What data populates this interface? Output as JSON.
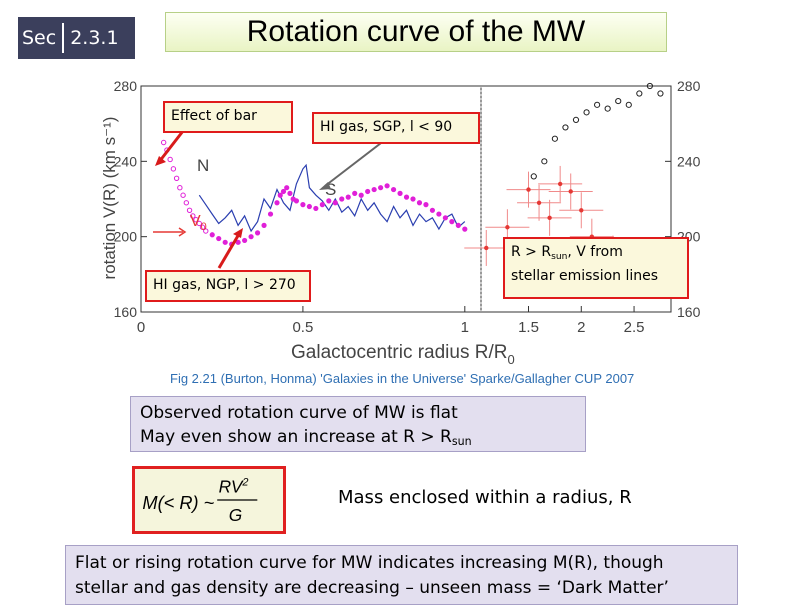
{
  "section": {
    "prefix": "Sec",
    "number": "2.3.1"
  },
  "title": "Rotation curve of the MW",
  "callouts": {
    "bar": "Effect of bar",
    "sgp": "HI gas, SGP, l < 90",
    "ngp": "HI gas, NGP, l > 270",
    "stellar_line1_main": "R > R",
    "stellar_line1_sub": "sun",
    "stellar_line1_tail": ", V from",
    "stellar_line2": "stellar emission lines"
  },
  "figure": {
    "caption": "Fig 2.21 (Burton, Honma) 'Galaxies in the Universe' Sparke/Gallagher CUP 2007",
    "x_label_main": "Galactocentric  radius  R/R",
    "x_label_sub": "0",
    "y_label": "rotation  V(R)  (km s⁻¹)",
    "annot_N": "N",
    "annot_S": "S",
    "annot_V": "V",
    "annot_V_sub": "0",
    "left_x_ticks": [
      "0",
      "0.5",
      "1"
    ],
    "right_x_ticks": [
      "1.5",
      "2",
      "2.5"
    ],
    "y_ticks": [
      "160",
      "200",
      "240",
      "280"
    ]
  },
  "chart_data": {
    "type": "line",
    "title": "",
    "xlabel": "Galactocentric radius R/R0",
    "ylabel": "rotation V(R) (km s^-1)",
    "ylim": [
      160,
      280
    ],
    "panels": [
      {
        "xlim": [
          0,
          1.05
        ],
        "x_ticks": [
          0,
          0.5,
          1
        ]
      },
      {
        "xlim": [
          1.05,
          2.85
        ],
        "x_ticks": [
          1.5,
          2,
          2.5
        ]
      }
    ],
    "series": [
      {
        "name": "HI gas SGP (blue line)",
        "color": "#2b3fb0",
        "x": [
          0.18,
          0.2,
          0.22,
          0.24,
          0.26,
          0.28,
          0.3,
          0.32,
          0.34,
          0.36,
          0.38,
          0.4,
          0.42,
          0.44,
          0.46,
          0.48,
          0.5,
          0.51,
          0.52,
          0.54,
          0.56,
          0.58,
          0.6,
          0.62,
          0.64,
          0.66,
          0.68,
          0.7,
          0.72,
          0.74,
          0.76,
          0.78,
          0.8,
          0.82,
          0.84,
          0.86,
          0.88,
          0.9,
          0.92,
          0.94,
          0.96,
          0.98,
          1.0
        ],
        "y": [
          222,
          217,
          212,
          207,
          210,
          214,
          206,
          211,
          203,
          208,
          220,
          215,
          225,
          218,
          214,
          228,
          236,
          238,
          226,
          222,
          219,
          214,
          220,
          213,
          216,
          211,
          220,
          214,
          218,
          212,
          208,
          216,
          210,
          214,
          206,
          212,
          208,
          210,
          204,
          210,
          212,
          205,
          208
        ]
      },
      {
        "name": "HI gas NGP (magenta dots)",
        "color": "#e020d8",
        "x": [
          0.07,
          0.08,
          0.09,
          0.1,
          0.11,
          0.12,
          0.13,
          0.14,
          0.15,
          0.16,
          0.17,
          0.18,
          0.19,
          0.2,
          0.22,
          0.24,
          0.26,
          0.28,
          0.3,
          0.32,
          0.34,
          0.36,
          0.38,
          0.4,
          0.42,
          0.43,
          0.44,
          0.45,
          0.46,
          0.47,
          0.48,
          0.5,
          0.52,
          0.54,
          0.56,
          0.58,
          0.6,
          0.62,
          0.64,
          0.66,
          0.68,
          0.7,
          0.72,
          0.74,
          0.76,
          0.78,
          0.8,
          0.82,
          0.84,
          0.86,
          0.88,
          0.9,
          0.92,
          0.94,
          0.96,
          0.98,
          1.0
        ],
        "y": [
          250,
          246,
          241,
          236,
          231,
          226,
          222,
          218,
          214,
          211,
          209,
          207,
          205,
          203,
          201,
          199,
          197,
          196,
          197,
          198,
          200,
          202,
          206,
          212,
          218,
          222,
          224,
          226,
          223,
          220,
          219,
          217,
          216,
          215,
          217,
          219,
          218,
          220,
          221,
          223,
          222,
          224,
          225,
          226,
          227,
          225,
          223,
          221,
          220,
          218,
          217,
          214,
          212,
          210,
          208,
          206,
          204
        ]
      },
      {
        "name": "Stellar (black open circles)",
        "color": "#222222",
        "x": [
          1.55,
          1.65,
          1.75,
          1.85,
          1.95,
          2.05,
          2.15,
          2.25,
          2.35,
          2.45,
          2.55,
          2.65,
          2.75
        ],
        "y": [
          232,
          240,
          252,
          258,
          262,
          266,
          270,
          268,
          272,
          270,
          276,
          280,
          276
        ]
      },
      {
        "name": "Stellar (red points with error bars)",
        "color": "#e53935",
        "x": [
          1.1,
          1.3,
          1.5,
          1.6,
          1.7,
          1.8,
          1.9,
          2.0,
          2.1,
          2.3,
          2.5
        ],
        "y": [
          194,
          205,
          225,
          218,
          210,
          228,
          224,
          214,
          200,
          191,
          190
        ]
      }
    ]
  },
  "observed": {
    "line1": "Observed rotation curve of MW is flat",
    "line2_main": "May even show an increase at R > R",
    "line2_sub": "sun"
  },
  "formula": {
    "lhs": "M(< R) ~",
    "num": "RV",
    "num_exp": "2",
    "den": "G"
  },
  "mass_text": "Mass enclosed within a radius, R",
  "conclusion": {
    "line1": "Flat or rising rotation curve for MW indicates increasing M(R), though",
    "line2": "stellar and gas density are decreasing – unseen mass = ‘Dark Matter’"
  }
}
